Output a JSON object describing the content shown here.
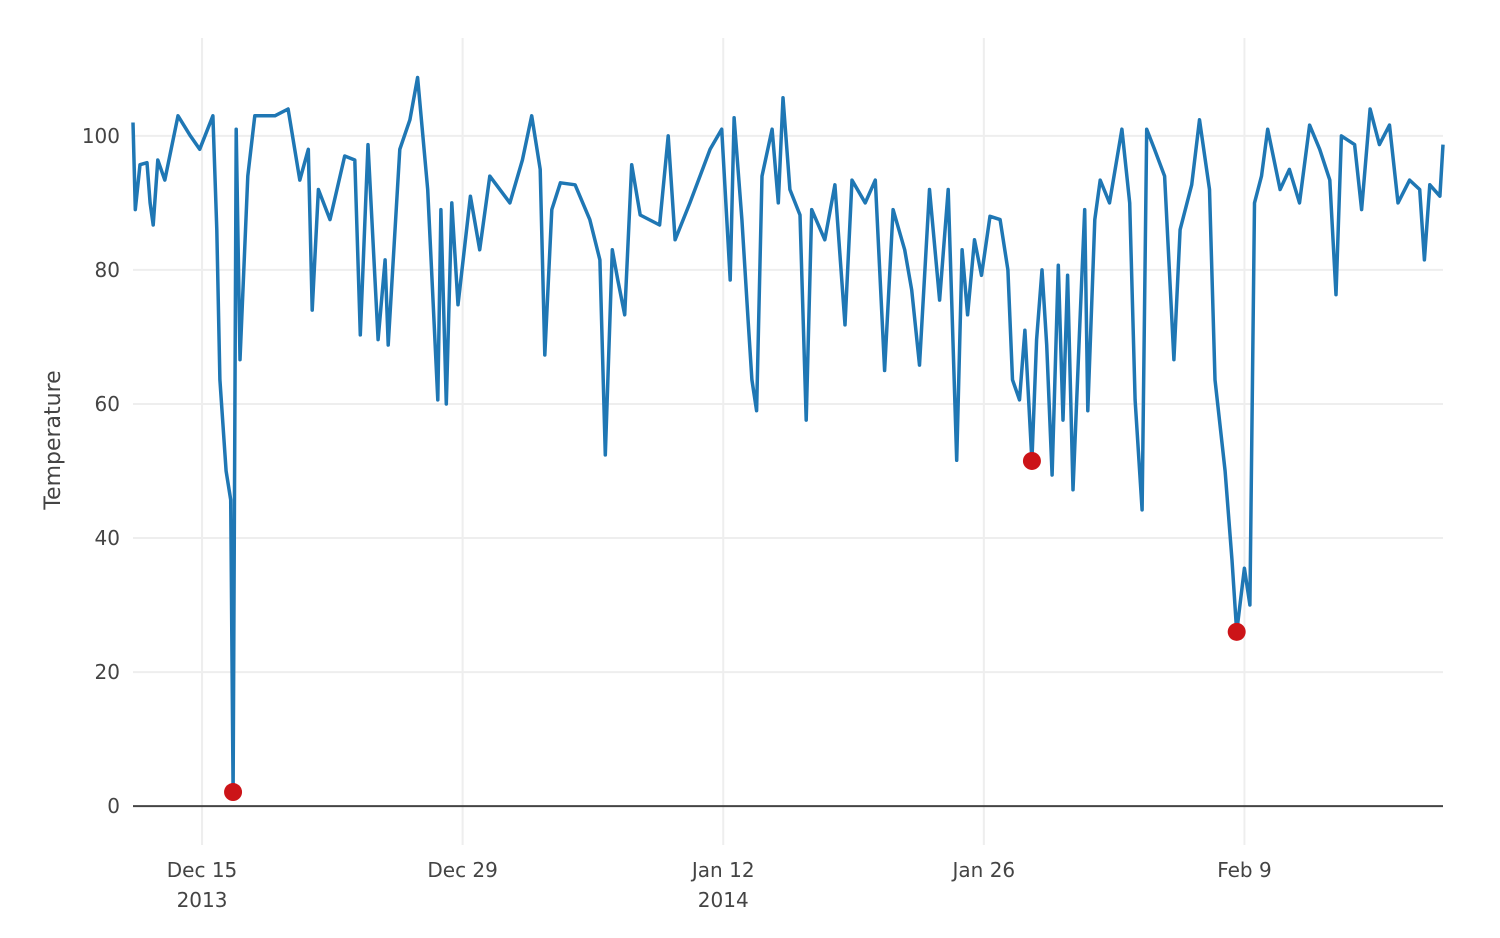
{
  "chart_data": {
    "type": "line",
    "title": "",
    "xlabel": "",
    "ylabel": "Temperature",
    "xlim": [
      "2013-12-11T07:00",
      "2014-02-19T16:00"
    ],
    "ylim": [
      -5.8,
      114.6
    ],
    "grid": true,
    "legend": "none",
    "x_ticks": [
      {
        "date": "2013-12-15",
        "label": "Dec 15",
        "sublabel": "2013"
      },
      {
        "date": "2013-12-29",
        "label": "Dec 29",
        "sublabel": ""
      },
      {
        "date": "2014-01-12",
        "label": "Jan 12",
        "sublabel": "2014"
      },
      {
        "date": "2014-01-26",
        "label": "Jan 26",
        "sublabel": ""
      },
      {
        "date": "2014-02-09",
        "label": "Feb 9",
        "sublabel": ""
      }
    ],
    "y_ticks": [
      0,
      20,
      40,
      60,
      80,
      100
    ],
    "colors": {
      "line": "#1f77b4",
      "anomaly": "#cc1418",
      "grid": "#eeeeee",
      "zeroline": "#444444"
    },
    "series": [
      {
        "points": [
          [
            "2013-12-11T07:00",
            102
          ],
          [
            "2013-12-11T10:00",
            89
          ],
          [
            "2013-12-11T16:00",
            95.7
          ],
          [
            "2013-12-12T01:00",
            96
          ],
          [
            "2013-12-12T05:00",
            90
          ],
          [
            "2013-12-12T09:00",
            86.7
          ],
          [
            "2013-12-12T15:00",
            96.4
          ],
          [
            "2013-12-13T00:00",
            93.4
          ],
          [
            "2013-12-13T17:00",
            103
          ],
          [
            "2013-12-14T09:00",
            100
          ],
          [
            "2013-12-14T21:00",
            98
          ],
          [
            "2013-12-15T14:00",
            103
          ],
          [
            "2013-12-15T19:00",
            86
          ],
          [
            "2013-12-15T23:00",
            63.6
          ],
          [
            "2013-12-16T07:00",
            50
          ],
          [
            "2013-12-16T13:00",
            45.7
          ],
          [
            "2013-12-16T16:00",
            2.1
          ],
          [
            "2013-12-16T20:00",
            101
          ],
          [
            "2013-12-17T01:00",
            66.6
          ],
          [
            "2013-12-17T11:00",
            94
          ],
          [
            "2013-12-17T20:00",
            103
          ],
          [
            "2013-12-18T22:00",
            103
          ],
          [
            "2013-12-19T15:00",
            104
          ],
          [
            "2013-12-20T06:00",
            93.4
          ],
          [
            "2013-12-20T17:00",
            98
          ],
          [
            "2013-12-20T22:00",
            74
          ],
          [
            "2013-12-21T06:00",
            92
          ],
          [
            "2013-12-21T21:00",
            87.5
          ],
          [
            "2013-12-22T16:00",
            97
          ],
          [
            "2013-12-23T05:00",
            96.4
          ],
          [
            "2013-12-23T12:00",
            70.3
          ],
          [
            "2013-12-23T22:00",
            98.7
          ],
          [
            "2013-12-24T11:00",
            69.6
          ],
          [
            "2013-12-24T20:00",
            81.5
          ],
          [
            "2013-12-25T00:00",
            68.8
          ],
          [
            "2013-12-25T15:00",
            98
          ],
          [
            "2013-12-26T04:00",
            102.4
          ],
          [
            "2013-12-26T14:00",
            108.7
          ],
          [
            "2013-12-27T03:00",
            92
          ],
          [
            "2013-12-27T16:00",
            60.6
          ],
          [
            "2013-12-27T20:00",
            89
          ],
          [
            "2013-12-28T03:00",
            60
          ],
          [
            "2013-12-28T10:00",
            90
          ],
          [
            "2013-12-28T18:00",
            74.8
          ],
          [
            "2013-12-29T10:00",
            91
          ],
          [
            "2013-12-29T22:00",
            83
          ],
          [
            "2013-12-30T11:00",
            94
          ],
          [
            "2013-12-31T13:00",
            90
          ],
          [
            "2014-01-01T05:00",
            96.4
          ],
          [
            "2014-01-01T17:00",
            103
          ],
          [
            "2014-01-02T04:00",
            95
          ],
          [
            "2014-01-02T10:00",
            67.3
          ],
          [
            "2014-01-02T19:00",
            89
          ],
          [
            "2014-01-03T06:00",
            93
          ],
          [
            "2014-01-04T01:00",
            92.7
          ],
          [
            "2014-01-04T20:00",
            87.5
          ],
          [
            "2014-01-05T09:00",
            81.5
          ],
          [
            "2014-01-05T16:00",
            52.4
          ],
          [
            "2014-01-06T01:00",
            83
          ],
          [
            "2014-01-06T08:00",
            78.5
          ],
          [
            "2014-01-06T17:00",
            73.3
          ],
          [
            "2014-01-07T02:00",
            95.7
          ],
          [
            "2014-01-07T13:00",
            88.2
          ],
          [
            "2014-01-08T14:00",
            86.7
          ],
          [
            "2014-01-09T01:00",
            100
          ],
          [
            "2014-01-09T10:00",
            84.5
          ],
          [
            "2014-01-10T05:00",
            90
          ],
          [
            "2014-01-10T18:00",
            94
          ],
          [
            "2014-01-11T07:00",
            98
          ],
          [
            "2014-01-11T22:00",
            101
          ],
          [
            "2014-01-12T09:00",
            78.5
          ],
          [
            "2014-01-12T14:00",
            102.7
          ],
          [
            "2014-01-13T00:00",
            87.5
          ],
          [
            "2014-01-13T08:00",
            72.5
          ],
          [
            "2014-01-13T13:00",
            63.6
          ],
          [
            "2014-01-13T19:00",
            59
          ],
          [
            "2014-01-14T02:00",
            94
          ],
          [
            "2014-01-14T15:00",
            101
          ],
          [
            "2014-01-14T23:00",
            90
          ],
          [
            "2014-01-15T05:00",
            105.7
          ],
          [
            "2014-01-15T14:00",
            92
          ],
          [
            "2014-01-16T03:00",
            88.2
          ],
          [
            "2014-01-16T11:00",
            57.6
          ],
          [
            "2014-01-16T18:00",
            89
          ],
          [
            "2014-01-17T11:00",
            84.5
          ],
          [
            "2014-01-18T00:00",
            92.7
          ],
          [
            "2014-01-18T13:00",
            71.8
          ],
          [
            "2014-01-18T22:00",
            93.4
          ],
          [
            "2014-01-19T15:00",
            90
          ],
          [
            "2014-01-20T04:00",
            93.4
          ],
          [
            "2014-01-20T16:00",
            65
          ],
          [
            "2014-01-21T03:00",
            89
          ],
          [
            "2014-01-21T18:00",
            83
          ],
          [
            "2014-01-22T03:00",
            77
          ],
          [
            "2014-01-22T13:00",
            65.8
          ],
          [
            "2014-01-23T02:00",
            92
          ],
          [
            "2014-01-23T15:00",
            75.5
          ],
          [
            "2014-01-24T02:00",
            92
          ],
          [
            "2014-01-24T13:00",
            51.6
          ],
          [
            "2014-01-24T20:00",
            83
          ],
          [
            "2014-01-25T03:00",
            73.3
          ],
          [
            "2014-01-25T12:00",
            84.5
          ],
          [
            "2014-01-25T21:00",
            79.2
          ],
          [
            "2014-01-26T08:00",
            88
          ],
          [
            "2014-01-26T21:00",
            87.5
          ],
          [
            "2014-01-27T07:00",
            80
          ],
          [
            "2014-01-27T13:00",
            63.6
          ],
          [
            "2014-01-27T22:00",
            60.6
          ],
          [
            "2014-01-28T05:00",
            71
          ],
          [
            "2014-01-28T14:00",
            51.5
          ],
          [
            "2014-01-28T20:00",
            69.6
          ],
          [
            "2014-01-29T03:00",
            80
          ],
          [
            "2014-01-29T09:00",
            68.8
          ],
          [
            "2014-01-29T16:00",
            49.4
          ],
          [
            "2014-01-30T00:00",
            80.7
          ],
          [
            "2014-01-30T06:00",
            57.6
          ],
          [
            "2014-01-30T12:00",
            79.2
          ],
          [
            "2014-01-30T19:00",
            47.2
          ],
          [
            "2014-01-31T04:00",
            72.5
          ],
          [
            "2014-01-31T10:00",
            89
          ],
          [
            "2014-01-31T14:00",
            59
          ],
          [
            "2014-01-31T23:00",
            87.5
          ],
          [
            "2014-02-01T06:00",
            93.4
          ],
          [
            "2014-02-01T18:00",
            90
          ],
          [
            "2014-02-02T10:00",
            101
          ],
          [
            "2014-02-02T20:00",
            90
          ],
          [
            "2014-02-03T03:00",
            60.6
          ],
          [
            "2014-02-03T12:00",
            44.2
          ],
          [
            "2014-02-03T18:00",
            101
          ],
          [
            "2014-02-04T04:00",
            98
          ],
          [
            "2014-02-04T17:00",
            94
          ],
          [
            "2014-02-05T05:00",
            66.6
          ],
          [
            "2014-02-05T13:00",
            86
          ],
          [
            "2014-02-06T04:00",
            92.7
          ],
          [
            "2014-02-06T14:00",
            102.4
          ],
          [
            "2014-02-07T03:00",
            92
          ],
          [
            "2014-02-07T10:00",
            63.6
          ],
          [
            "2014-02-07T23:00",
            50
          ],
          [
            "2014-02-08T08:00",
            36.7
          ],
          [
            "2014-02-08T14:00",
            26
          ],
          [
            "2014-02-09T00:00",
            35.5
          ],
          [
            "2014-02-09T07:00",
            30
          ],
          [
            "2014-02-09T13:00",
            90
          ],
          [
            "2014-02-09T22:00",
            94
          ],
          [
            "2014-02-10T06:00",
            101
          ],
          [
            "2014-02-10T22:00",
            92
          ],
          [
            "2014-02-11T10:00",
            95
          ],
          [
            "2014-02-11T23:00",
            90
          ],
          [
            "2014-02-12T12:00",
            101.6
          ],
          [
            "2014-02-13T01:00",
            98
          ],
          [
            "2014-02-13T14:00",
            93.4
          ],
          [
            "2014-02-13T22:00",
            76.3
          ],
          [
            "2014-02-14T05:00",
            100
          ],
          [
            "2014-02-14T22:00",
            98.7
          ],
          [
            "2014-02-15T07:00",
            89
          ],
          [
            "2014-02-15T18:00",
            104
          ],
          [
            "2014-02-16T06:00",
            98.7
          ],
          [
            "2014-02-16T19:00",
            101.6
          ],
          [
            "2014-02-17T06:00",
            90
          ],
          [
            "2014-02-17T21:00",
            93.4
          ],
          [
            "2014-02-18T10:00",
            92
          ],
          [
            "2014-02-18T16:00",
            81.5
          ],
          [
            "2014-02-18T23:00",
            92.7
          ],
          [
            "2014-02-19T12:00",
            91
          ],
          [
            "2014-02-19T16:00",
            98.7
          ]
        ]
      }
    ],
    "anomalies": [
      [
        "2013-12-16T16:00",
        2.1
      ],
      [
        "2014-01-28T14:00",
        51.5
      ],
      [
        "2014-02-08T14:00",
        26
      ]
    ]
  }
}
